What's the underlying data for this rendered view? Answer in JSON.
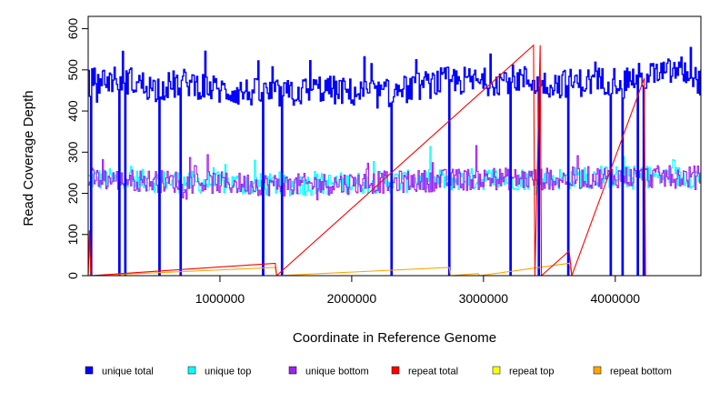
{
  "chart_data": {
    "type": "line",
    "title": "",
    "xlabel": "Coordinate in Reference Genome",
    "ylabel": "Read Coverage Depth",
    "xlim": [
      0,
      4650000
    ],
    "ylim": [
      0,
      630
    ],
    "x_ticks": [
      1000000,
      2000000,
      3000000,
      4000000
    ],
    "x_tick_labels": [
      "1000000",
      "2000000",
      "3000000",
      "4000000"
    ],
    "y_ticks": [
      0,
      100,
      200,
      300,
      400,
      500,
      600
    ],
    "y_tick_labels": [
      "0",
      "100",
      "200",
      "300",
      "400",
      "500",
      "600"
    ],
    "legend_position": "bottom",
    "series": [
      {
        "name": "unique total",
        "color": "#0000ff",
        "values": [
          [
            0,
            470
          ],
          [
            250000,
            480
          ],
          [
            500000,
            455
          ],
          [
            750000,
            470
          ],
          [
            1000000,
            450
          ],
          [
            1250000,
            445
          ],
          [
            1500000,
            440
          ],
          [
            1750000,
            455
          ],
          [
            2000000,
            445
          ],
          [
            2250000,
            440
          ],
          [
            2500000,
            460
          ],
          [
            2750000,
            475
          ],
          [
            3000000,
            470
          ],
          [
            3250000,
            480
          ],
          [
            3500000,
            465
          ],
          [
            3750000,
            470
          ],
          [
            4000000,
            475
          ],
          [
            4250000,
            485
          ],
          [
            4500000,
            500
          ],
          [
            4650000,
            470
          ]
        ],
        "dips_to_zero_at": [
          20000,
          230000,
          275000,
          540000,
          700000,
          1320000,
          1470000,
          2300000,
          2740000,
          3200000,
          3420000,
          3640000,
          3960000,
          4050000,
          4170000,
          4210000
        ]
      },
      {
        "name": "unique top",
        "color": "#00ffff",
        "values": [
          [
            0,
            235
          ],
          [
            500000,
            230
          ],
          [
            1000000,
            225
          ],
          [
            1500000,
            220
          ],
          [
            2000000,
            225
          ],
          [
            2500000,
            230
          ],
          [
            3000000,
            235
          ],
          [
            3500000,
            235
          ],
          [
            4000000,
            240
          ],
          [
            4650000,
            240
          ]
        ]
      },
      {
        "name": "unique bottom",
        "color": "#a020f0",
        "values": [
          [
            0,
            235
          ],
          [
            500000,
            230
          ],
          [
            1000000,
            225
          ],
          [
            1500000,
            220
          ],
          [
            2000000,
            225
          ],
          [
            2500000,
            230
          ],
          [
            3000000,
            235
          ],
          [
            3500000,
            235
          ],
          [
            4000000,
            240
          ],
          [
            4650000,
            240
          ]
        ]
      },
      {
        "name": "repeat total",
        "color": "#ff0000",
        "values": [
          [
            0,
            0
          ],
          [
            10000,
            110
          ],
          [
            20000,
            0
          ],
          [
            1420000,
            30
          ],
          [
            1430000,
            0
          ],
          [
            3380000,
            560
          ],
          [
            3390000,
            0
          ],
          [
            3430000,
            560
          ],
          [
            3440000,
            0
          ],
          [
            3650000,
            60
          ],
          [
            3670000,
            0
          ],
          [
            4220000,
            480
          ],
          [
            4230000,
            0
          ],
          [
            4650000,
            0
          ]
        ]
      },
      {
        "name": "repeat top",
        "color": "#ffff00",
        "values": [
          [
            0,
            0
          ],
          [
            4650000,
            0
          ]
        ]
      },
      {
        "name": "repeat bottom",
        "color": "#ffa500",
        "values": [
          [
            0,
            0
          ],
          [
            10000,
            80
          ],
          [
            20000,
            0
          ],
          [
            1420000,
            20
          ],
          [
            1430000,
            0
          ],
          [
            2740000,
            20
          ],
          [
            2750000,
            0
          ],
          [
            2960000,
            5
          ],
          [
            2970000,
            0
          ],
          [
            3650000,
            30
          ],
          [
            3670000,
            0
          ],
          [
            4650000,
            0
          ]
        ]
      }
    ]
  }
}
